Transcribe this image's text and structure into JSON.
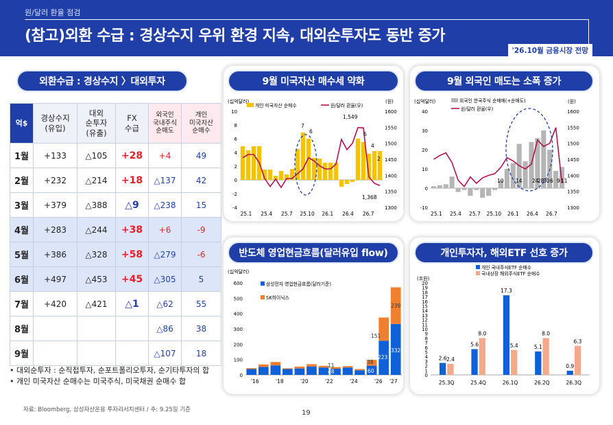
{
  "header": {
    "section": "원/달러 환율 점검",
    "title": "(참고)외환 수급 : 경상수지 우위 환경 지속, 대외순투자도 동반 증가",
    "tag": "'26.10월 금융시장 전망"
  },
  "table": {
    "pill": "외환수급 : 경상수지 〉대외투자",
    "headers": {
      "unit": "억$",
      "cur": "경상수지\n(유입)",
      "ext": "대외\n순투자\n(유출)",
      "fx": "FX\n수급",
      "foreign": "외국인\n국내주식\n순매도",
      "indiv": "개인\n미국자산\n순매수"
    },
    "rows": [
      {
        "m": "1월",
        "cur": "+133",
        "ext": "△105",
        "fx": "+28",
        "foreign": "+4",
        "indiv": "49"
      },
      {
        "m": "2월",
        "cur": "+232",
        "ext": "△214",
        "fx": "+18",
        "foreign": "△137",
        "indiv": "42"
      },
      {
        "m": "3월",
        "cur": "+379",
        "ext": "△388",
        "fx": "△9",
        "foreign": "△238",
        "indiv": "15"
      },
      {
        "m": "4월",
        "cur": "+283",
        "ext": "△244",
        "fx": "+38",
        "foreign": "+6",
        "indiv": "-9"
      },
      {
        "m": "5월",
        "cur": "+386",
        "ext": "△328",
        "fx": "+58",
        "foreign": "△279",
        "indiv": "-6"
      },
      {
        "m": "6월",
        "cur": "+497",
        "ext": "△453",
        "fx": "+45",
        "foreign": "△305",
        "indiv": "5"
      },
      {
        "m": "7월",
        "cur": "+420",
        "ext": "△421",
        "fx": "△1",
        "foreign": "△62",
        "indiv": "55"
      },
      {
        "m": "8월",
        "cur": "",
        "ext": "",
        "fx": "",
        "foreign": "△86",
        "indiv": "38"
      },
      {
        "m": "9월",
        "cur": "",
        "ext": "",
        "fx": "",
        "foreign": "△107",
        "indiv": "18"
      }
    ],
    "notes": [
      "• 대외순투자 : 순직접투자, 순포트폴리오투자, 순기타투자의 합",
      "• 개인 미국자산 순매수는 미국주식, 미국채권 순매수 합"
    ]
  },
  "source": "자료: Bloomberg, 삼성자산운용 투자리서치센터 / 주: 9.25일 기준",
  "page": "19",
  "colors": {
    "navy": "#1f3ea8",
    "red": "#e0202a",
    "yellow": "#f7c300",
    "gray": "#b5b5b5",
    "crimson": "#b3124d",
    "blue": "#1060d8",
    "orange": "#f08030",
    "peach": "#f4aa8a"
  },
  "chart_data": [
    {
      "type": "bar",
      "title": "9월 미국자산 매수세 약화",
      "ylabel_left": "(십억달러)",
      "ylabel_right": "(원)",
      "ylim": [
        -4,
        10
      ],
      "y2lim": [
        1300,
        1600
      ],
      "yticks": [
        -4,
        -2,
        0,
        2,
        4,
        6,
        8,
        10
      ],
      "y2ticks": [
        1300,
        1350,
        1400,
        1450,
        1500,
        1550,
        1600
      ],
      "xticks": [
        "25.1",
        "25.4",
        "25.7",
        "25.10",
        "26.1",
        "26.4",
        "26.7"
      ],
      "series": [
        {
          "name": "개인 미국자산 순매수",
          "values": [
            4.9,
            4.3,
            4.9,
            4.9,
            1.5,
            1.5,
            0.6,
            1.3,
            0.8,
            1.6,
            4.5,
            6.9,
            6.0,
            3.2,
            3.1,
            2.5,
            2.5,
            2.5,
            -1.0,
            -0.6,
            -0.3,
            6.0,
            5.5,
            3.8,
            4.2,
            4.2
          ]
        },
        {
          "name": "원/달러 환율(우)",
          "values": [
            1455,
            1465,
            1465,
            1440,
            1390,
            1365,
            1388,
            1362,
            1390,
            1390,
            1405,
            1420,
            1455,
            1445,
            1430,
            1420,
            1420,
            1435,
            1512,
            1480,
            1500,
            1549,
            1548,
            1395,
            1375,
            1368
          ]
        }
      ],
      "annotations": [
        "7",
        "6",
        "1,549",
        "6",
        "4",
        "2",
        "1,368"
      ]
    },
    {
      "type": "bar",
      "title": "9월 외국인 매도는 소폭 증가",
      "ylabel_left": "(십억달러)",
      "ylabel_right": "(원)",
      "ylim": [
        -10,
        40
      ],
      "y2lim": [
        1300,
        1600
      ],
      "yticks": [
        -10,
        0,
        10,
        20,
        30,
        40
      ],
      "y2ticks": [
        1300,
        1350,
        1400,
        1450,
        1500,
        1550,
        1600
      ],
      "xticks": [
        "25.1",
        "25.4",
        "25.7",
        "25.10",
        "26.1",
        "26.4",
        "26.7"
      ],
      "series": [
        {
          "name": "외국인 한국주식 순매매(+순매도)",
          "values": [
            1,
            1.5,
            2,
            6,
            -2,
            -1,
            -4,
            -1,
            -5,
            -4,
            -1,
            4,
            10,
            13,
            23,
            14,
            24,
            26,
            30,
            20,
            9,
            11
          ]
        },
        {
          "name": "원/달러 환율(우)",
          "values": [
            1450,
            1462,
            1470,
            1440,
            1385,
            1365,
            1395,
            1375,
            1392,
            1400,
            1405,
            1425,
            1455,
            1445,
            1430,
            1420,
            1435,
            1510,
            1490,
            1500,
            1549,
            1375
          ]
        }
      ],
      "annotations": [
        "10",
        "14",
        "24",
        "28",
        "30",
        "6",
        "9",
        "11"
      ]
    },
    {
      "type": "bar",
      "title": "반도체 영업현금흐름(달러유입 flow)",
      "ylabel": "(십억달러)",
      "ylim": [
        0,
        600
      ],
      "yticks": [
        0,
        100,
        200,
        300,
        400,
        500,
        600
      ],
      "xticks": [
        "'16",
        "'18",
        "'20",
        "'22",
        "'24",
        "'26",
        "'27"
      ],
      "series": [
        {
          "name": "삼성전자 영업현금흐름(달러기준)",
          "values": [
            38,
            52,
            62,
            38,
            42,
            55,
            48,
            40,
            48,
            30,
            60,
            223,
            332
          ]
        },
        {
          "name": "SK하이닉스",
          "values": [
            6,
            16,
            22,
            5,
            12,
            15,
            11,
            11,
            9,
            8,
            38,
            151,
            239
          ]
        }
      ],
      "annotations": [
        "11",
        "48",
        "38",
        "60",
        "151",
        "223",
        "239",
        "332"
      ]
    },
    {
      "type": "bar",
      "title": "개인투자자, 해외ETF 선호 증가",
      "ylabel": "(조원)",
      "ylim": [
        0,
        20
      ],
      "yticks": [
        0,
        1,
        2,
        3,
        4,
        5,
        6,
        7,
        8,
        9,
        10,
        11,
        12,
        13,
        14,
        15,
        16,
        17,
        18,
        19,
        20
      ],
      "categories": [
        "25.3Q",
        "25.4Q",
        "26.1Q",
        "26.2Q",
        "26.3Q"
      ],
      "series": [
        {
          "name": "개인 국내주식ETF 순매수",
          "values": [
            2.6,
            5.6,
            17.3,
            5.1,
            0.9
          ]
        },
        {
          "name": "국내상장 해외주식ETF 순매수",
          "values": [
            2.4,
            8.0,
            5.4,
            8.0,
            6.3
          ]
        }
      ],
      "value_labels": [
        "2.6",
        "2.4",
        "5.6",
        "8.0",
        "17.3",
        "5.4",
        "5.1",
        "8.0",
        "0.9",
        "6.3"
      ]
    }
  ]
}
